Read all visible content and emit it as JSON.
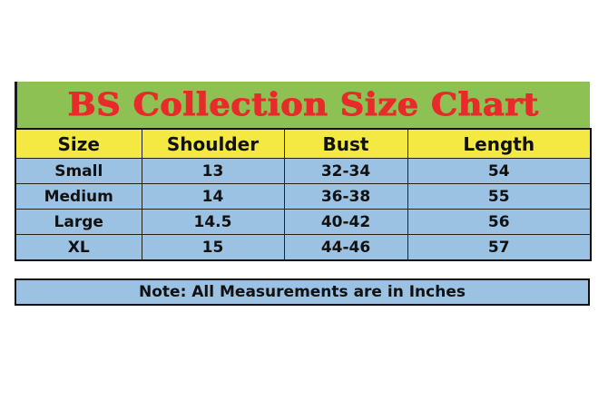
{
  "title": "BS Collection Size Chart",
  "colors": {
    "title_bg": "#8dc153",
    "title_text": "#e82a2a",
    "header_bg": "#f3e942",
    "row_bg": "#9cc2e3"
  },
  "headers": [
    "Size",
    "Shoulder",
    "Bust",
    "Length"
  ],
  "rows": [
    [
      "Small",
      "13",
      "32-34",
      "54"
    ],
    [
      "Medium",
      "14",
      "36-38",
      "55"
    ],
    [
      "Large",
      "14.5",
      "40-42",
      "56"
    ],
    [
      "XL",
      "15",
      "44-46",
      "57"
    ]
  ],
  "note": "Note: All Measurements are in Inches"
}
